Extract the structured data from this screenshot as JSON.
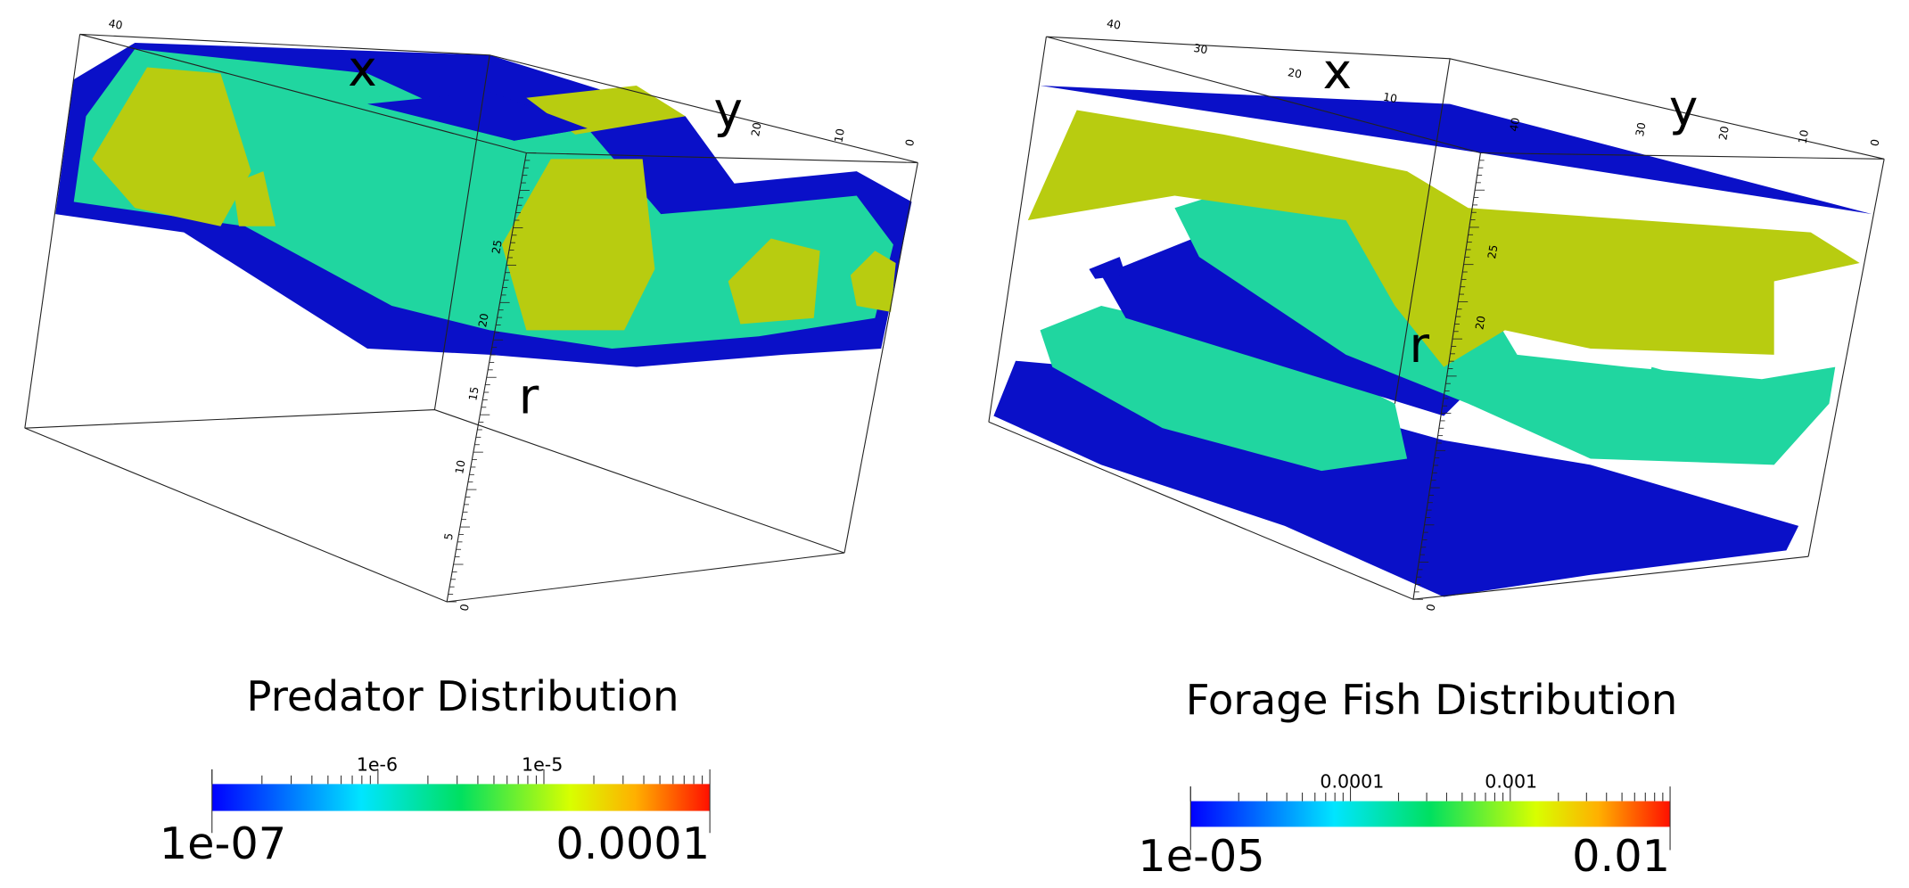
{
  "panels": [
    {
      "title": "Predator Distribution",
      "axis_labels": {
        "x": "x",
        "y": "y",
        "r": "r"
      },
      "x_ticks": [
        "40"
      ],
      "y_ticks": [
        "20",
        "10",
        "0"
      ],
      "r_ticks": [
        "25",
        "20",
        "15",
        "10",
        "5",
        "0"
      ],
      "colorbar": {
        "min_label": "1e-07",
        "max_label": "0.0001",
        "mid_labels": [
          "1e-6",
          "1e-5"
        ]
      }
    },
    {
      "title": "Forage Fish Distribution",
      "axis_labels": {
        "x": "x",
        "y": "y",
        "r": "r"
      },
      "x_ticks": [
        "40",
        "30",
        "20",
        "10"
      ],
      "y_ticks": [
        "40",
        "30",
        "20",
        "10",
        "0"
      ],
      "r_ticks": [
        "25",
        "20",
        "0"
      ],
      "colorbar": {
        "min_label": "1e-05",
        "max_label": "0.01",
        "mid_labels": [
          "0.0001",
          "0.001"
        ]
      }
    }
  ]
}
